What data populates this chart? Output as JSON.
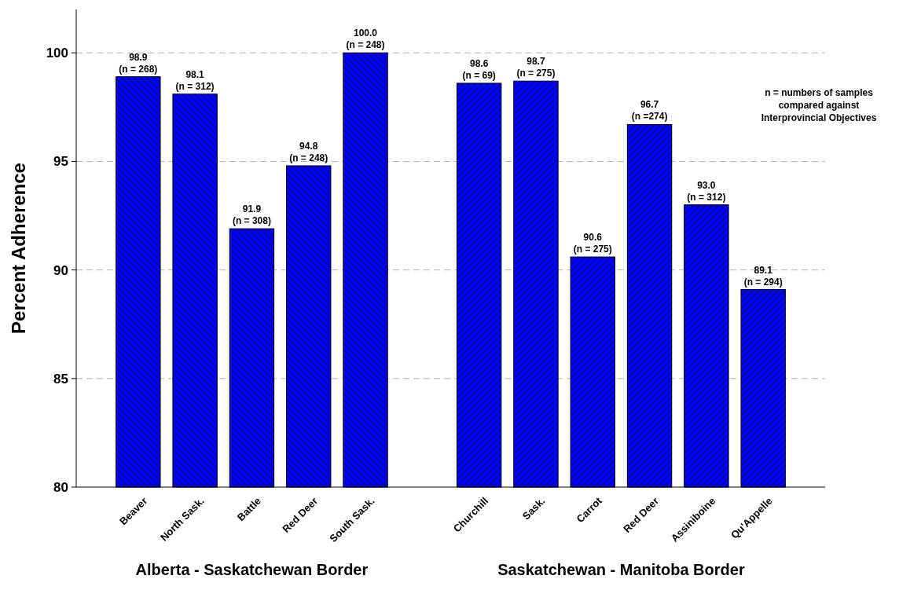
{
  "chart_data": {
    "type": "bar",
    "ylabel": "Percent Adherence",
    "categories": [
      "Beaver",
      "North Sask.",
      "Battle",
      "Red Deer",
      "South Sask.",
      null,
      "Churchill",
      "Sask.",
      "Carrot",
      "Red Deer",
      "Assiniboine",
      "Qu'Appelle"
    ],
    "values": [
      98.9,
      98.1,
      91.9,
      94.8,
      100.0,
      null,
      98.6,
      98.7,
      90.6,
      96.7,
      93.0,
      89.1
    ],
    "value_labels": [
      "98.9\n(n = 268)",
      "98.1\n(n = 312)",
      "91.9\n(n = 308)",
      "94.8\n(n = 248)",
      "100.0\n(n = 248)",
      null,
      "98.6\n(n = 69)",
      "98.7\n(n = 275)",
      "90.6\n(n = 275)",
      "96.7\n(n =274)",
      "93.0\n(n = 312)",
      "89.1\n(n = 294)"
    ],
    "color": "#0000ff",
    "ylim": [
      80,
      102
    ],
    "yticks": [
      80,
      85,
      90,
      95,
      100
    ],
    "grid": "y",
    "annotations": [
      "Alberta - Saskatchewan Border",
      "Saskatchewan - Manitoba Border",
      "n = numbers of samples compared against Interprovincial Objectives"
    ]
  }
}
